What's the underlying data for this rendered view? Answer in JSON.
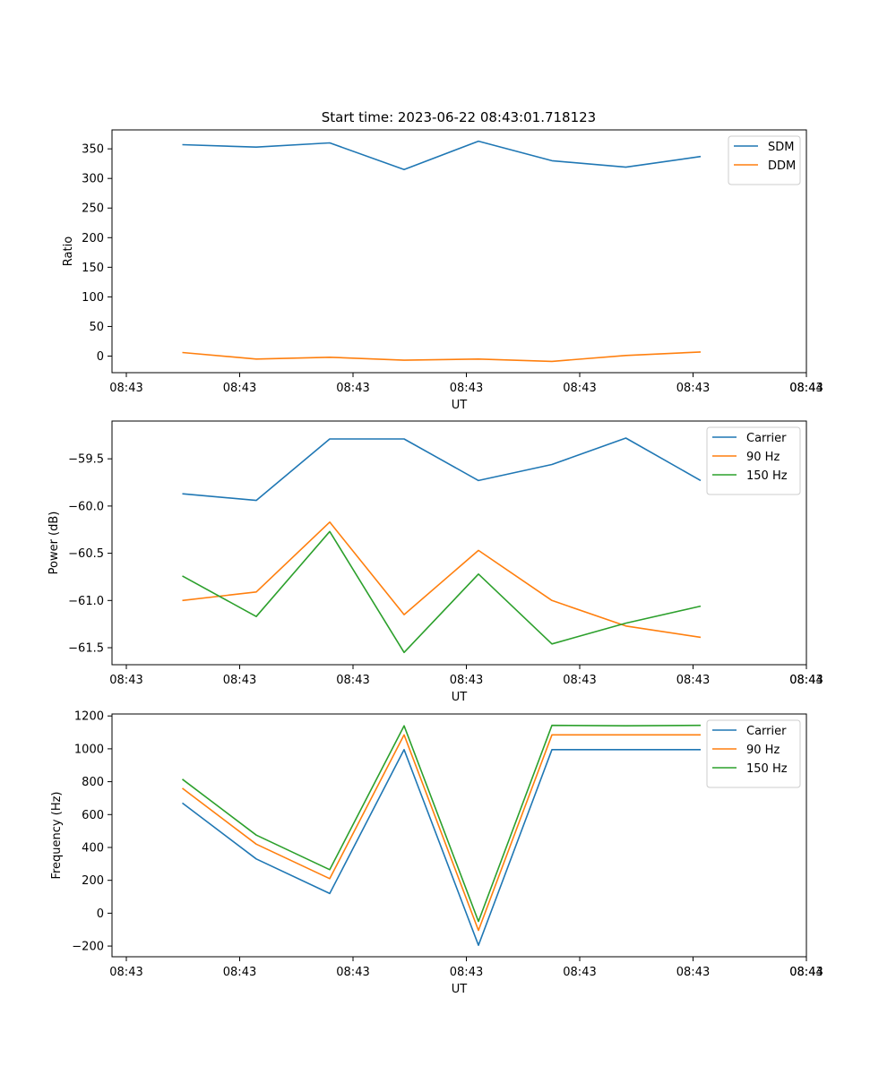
{
  "figure": {
    "title": "Start time: 2023-06-22 08:43:01.718123"
  },
  "colors": {
    "series_1": "#1f77b4",
    "series_2": "#ff7f0e",
    "series_3": "#2ca02c"
  },
  "chart_data": [
    {
      "type": "line",
      "title": "Start time: 2023-06-22 08:43:01.718123",
      "xlabel": "UT",
      "ylabel": "Ratio",
      "x_tick_labels": [
        "08:43",
        "08:43",
        "08:43",
        "08:43",
        "08:43",
        "08:43",
        "08:43"
      ],
      "x_tick_last_label": "08:44",
      "y_ticks": [
        0,
        50,
        100,
        150,
        200,
        250,
        300,
        350
      ],
      "y_tick_labels": [
        "0",
        "50",
        "100",
        "150",
        "200",
        "250",
        "300",
        "350"
      ],
      "ylim": [
        -28,
        382
      ],
      "legend_loc": "upper right",
      "series": [
        {
          "name": "SDM",
          "color": "#1f77b4",
          "values": [
            357,
            353,
            360,
            315,
            363,
            330,
            319,
            337
          ]
        },
        {
          "name": "DDM",
          "color": "#ff7f0e",
          "values": [
            6,
            -5,
            -2,
            -7,
            -5,
            -9,
            1,
            7
          ]
        }
      ]
    },
    {
      "type": "line",
      "title": "",
      "xlabel": "UT",
      "ylabel": "Power (dB)",
      "x_tick_labels": [
        "08:43",
        "08:43",
        "08:43",
        "08:43",
        "08:43",
        "08:43",
        "08:43"
      ],
      "x_tick_last_label": "08:44",
      "y_ticks": [
        -61.5,
        -61.0,
        -60.5,
        -60.0,
        -59.5
      ],
      "y_tick_labels": [
        "−61.5",
        "−61.0",
        "−60.5",
        "−60.0",
        "−59.5"
      ],
      "ylim": [
        -61.68,
        -59.1
      ],
      "legend_loc": "upper right",
      "series": [
        {
          "name": "Carrier",
          "color": "#1f77b4",
          "values": [
            -59.87,
            -59.94,
            -59.29,
            -59.29,
            -59.73,
            -59.56,
            -59.28,
            -59.73
          ]
        },
        {
          "name": "90 Hz",
          "color": "#ff7f0e",
          "values": [
            -61.0,
            -60.91,
            -60.17,
            -61.15,
            -60.47,
            -61.0,
            -61.27,
            -61.39
          ]
        },
        {
          "name": "150 Hz",
          "color": "#2ca02c",
          "values": [
            -60.74,
            -61.17,
            -60.27,
            -61.55,
            -60.72,
            -61.46,
            -61.24,
            -61.06
          ]
        }
      ]
    },
    {
      "type": "line",
      "title": "",
      "xlabel": "UT",
      "ylabel": "Frequency (Hz)",
      "x_tick_labels": [
        "08:43",
        "08:43",
        "08:43",
        "08:43",
        "08:43",
        "08:43",
        "08:43"
      ],
      "x_tick_last_label": "08:44",
      "y_ticks": [
        -200,
        0,
        200,
        400,
        600,
        800,
        1000,
        1200
      ],
      "y_tick_labels": [
        "−200",
        "0",
        "200",
        "400",
        "600",
        "800",
        "1000",
        "1200"
      ],
      "ylim": [
        -265,
        1212
      ],
      "legend_loc": "upper right",
      "series": [
        {
          "name": "Carrier",
          "color": "#1f77b4",
          "values": [
            670,
            330,
            120,
            995,
            -195,
            995,
            995,
            995
          ]
        },
        {
          "name": "90 Hz",
          "color": "#ff7f0e",
          "values": [
            760,
            420,
            210,
            1085,
            -105,
            1085,
            1085,
            1085
          ]
        },
        {
          "name": "150 Hz",
          "color": "#2ca02c",
          "values": [
            815,
            475,
            265,
            1140,
            -50,
            1143,
            1140,
            1143
          ]
        }
      ]
    }
  ]
}
